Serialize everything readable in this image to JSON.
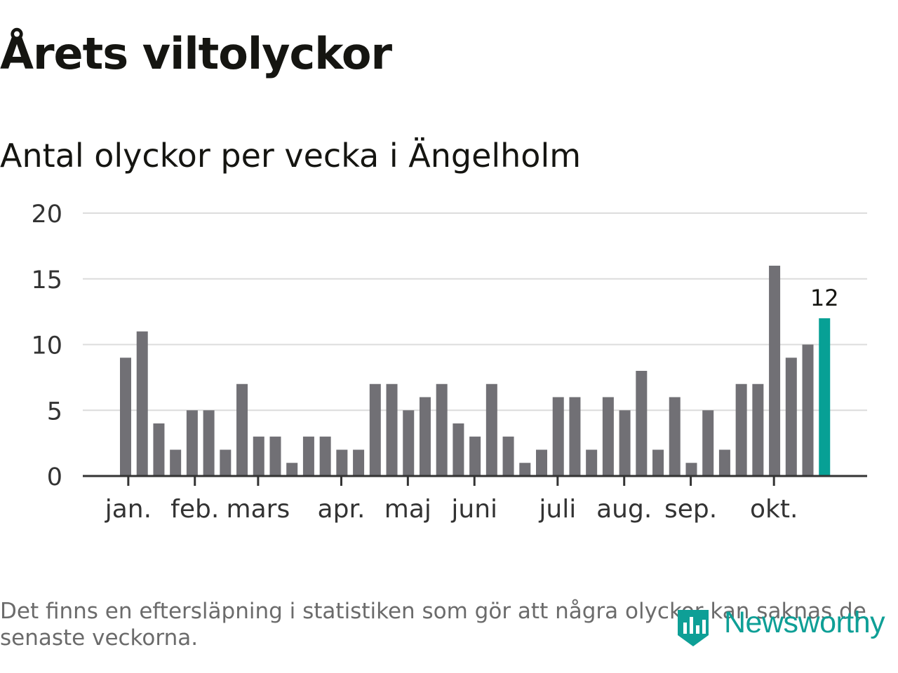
{
  "title": "Årets viltolyckor",
  "subtitle": "Antal olyckor per vecka i Ängelholm",
  "footnote": "Det finns en eftersläpning i statistiken som gör att några olyckor kan saknas de senaste veckorna.",
  "brand": {
    "name": "Newsworthy",
    "icon": "newsworthy-logo-icon"
  },
  "colors": {
    "bar": "#717075",
    "highlight": "#07a095",
    "grid": "#dcdcdc",
    "axis": "#333333",
    "text": "#151511"
  },
  "chart_data": {
    "type": "bar",
    "title": "Antal olyckor per vecka i Ängelholm",
    "xlabel": "",
    "ylabel": "",
    "ylim": [
      0,
      20
    ],
    "yticks": [
      0,
      5,
      10,
      15,
      20
    ],
    "grid": true,
    "values": [
      9,
      11,
      4,
      2,
      5,
      5,
      2,
      7,
      3,
      3,
      1,
      3,
      3,
      2,
      2,
      7,
      7,
      5,
      6,
      7,
      4,
      3,
      7,
      3,
      1,
      2,
      6,
      6,
      2,
      6,
      5,
      8,
      2,
      6,
      1,
      5,
      2,
      7,
      7,
      16,
      9,
      10,
      12
    ],
    "highlight_index": 42,
    "highlight_label": "12",
    "month_ticks": [
      {
        "label": "jan.",
        "week": 0.5
      },
      {
        "label": "feb.",
        "week": 4.5
      },
      {
        "label": "mars",
        "week": 8.3
      },
      {
        "label": "apr.",
        "week": 13.3
      },
      {
        "label": "maj",
        "week": 17.3
      },
      {
        "label": "juni",
        "week": 21.3
      },
      {
        "label": "juli",
        "week": 26.3
      },
      {
        "label": "aug.",
        "week": 30.3
      },
      {
        "label": "sep.",
        "week": 34.3
      },
      {
        "label": "okt.",
        "week": 39.3
      }
    ]
  }
}
